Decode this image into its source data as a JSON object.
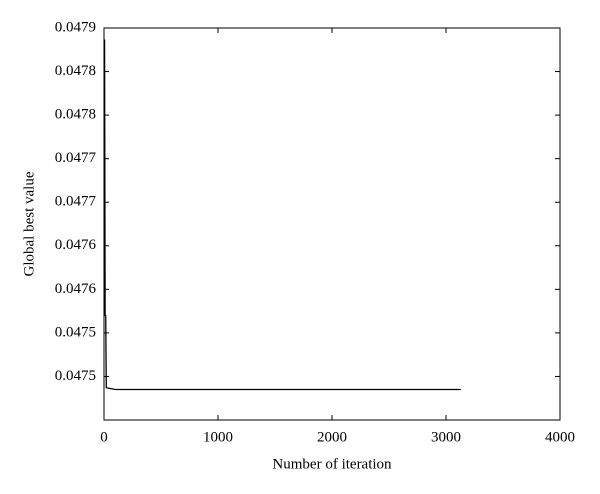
{
  "chart_data": {
    "type": "line",
    "xlabel": "Number of iteration",
    "ylabel": "Global best value",
    "x": [
      0,
      5,
      10,
      15,
      20,
      100,
      3130
    ],
    "series": [
      {
        "name": "Global best value",
        "color": "#000000",
        "values": [
          0.047886,
          0.047886,
          0.04757,
          0.04757,
          0.047487,
          0.047485,
          0.047485
        ]
      }
    ],
    "xlim": [
      0,
      4000
    ],
    "xticks": [
      0,
      1000,
      2000,
      3000,
      4000
    ],
    "ylim": [
      0.04745,
      0.0479
    ],
    "yticks": [
      {
        "value": 0.0475,
        "label": "0.0475"
      },
      {
        "value": 0.04755,
        "label": "0.0475"
      },
      {
        "value": 0.0476,
        "label": "0.0476"
      },
      {
        "value": 0.04765,
        "label": "0.0476"
      },
      {
        "value": 0.0477,
        "label": "0.0477"
      },
      {
        "value": 0.04775,
        "label": "0.0477"
      },
      {
        "value": 0.0478,
        "label": "0.0478"
      },
      {
        "value": 0.04785,
        "label": "0.0478"
      },
      {
        "value": 0.0479,
        "label": "0.0479"
      }
    ],
    "grid": false
  }
}
